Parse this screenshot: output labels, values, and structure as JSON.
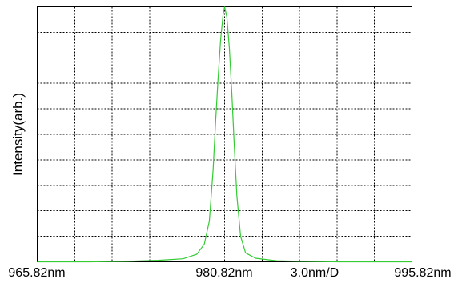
{
  "chart_data": {
    "type": "line",
    "title": "",
    "xlabel": "",
    "ylabel": "Intensity(arb.)",
    "xlim": [
      965.82,
      995.82
    ],
    "ylim": [
      0,
      1
    ],
    "grid": true,
    "x_divisions": 10,
    "y_divisions": 10,
    "tick_labels": {
      "left": "965.82nm",
      "center": "980.82nm",
      "resolution": "3.0nm/D",
      "right": "995.82nm"
    },
    "series": [
      {
        "color": "#33cc33",
        "x": [
          965.82,
          970.0,
          973.0,
          975.5,
          977.5,
          978.6,
          979.2,
          979.6,
          979.9,
          980.1,
          980.3,
          980.5,
          980.7,
          980.82,
          981.0,
          981.2,
          981.4,
          981.6,
          981.8,
          982.1,
          982.5,
          983.3,
          985.0,
          987.0,
          990.0,
          995.82
        ],
        "y": [
          0.0,
          0.0,
          0.002,
          0.006,
          0.012,
          0.03,
          0.07,
          0.16,
          0.36,
          0.55,
          0.72,
          0.87,
          0.97,
          1.0,
          0.96,
          0.84,
          0.66,
          0.45,
          0.26,
          0.1,
          0.035,
          0.014,
          0.004,
          0.002,
          0.0,
          0.0
        ]
      }
    ]
  }
}
